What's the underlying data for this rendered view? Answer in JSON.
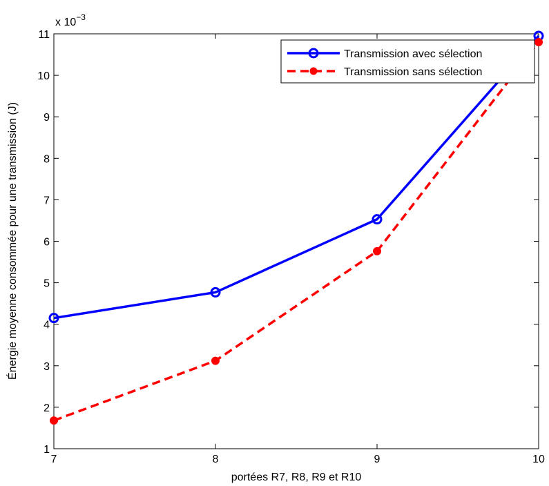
{
  "chart_data": {
    "type": "line",
    "xlabel": "portées R7, R8, R9 et R10",
    "ylabel": "Énergie moyenne consommée pour une transmission (J)",
    "y_exponent_label": "x 10",
    "y_exponent_power": "−3",
    "x": [
      7,
      8,
      9,
      10
    ],
    "x_ticks": [
      "7",
      "8",
      "9",
      "10"
    ],
    "y_ticks": [
      "1",
      "2",
      "3",
      "4",
      "5",
      "6",
      "7",
      "8",
      "9",
      "10",
      "11"
    ],
    "xlim": [
      7,
      10
    ],
    "ylim": [
      1,
      11
    ],
    "grid": false,
    "legend_position": "top-right",
    "series": [
      {
        "name": "Transmission avec sélection",
        "values": [
          4.15,
          4.77,
          6.53,
          10.95
        ],
        "color": "#0000ff",
        "line_style": "solid",
        "marker": "open-circle"
      },
      {
        "name": "Transmission sans sélection",
        "values": [
          1.68,
          3.12,
          5.76,
          10.8
        ],
        "color": "#ff0000",
        "line_style": "dashed",
        "marker": "filled-circle"
      }
    ]
  }
}
